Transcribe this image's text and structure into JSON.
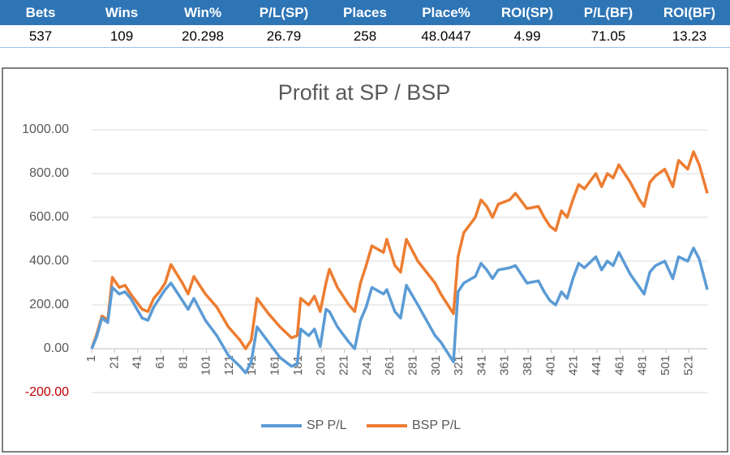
{
  "table": {
    "header": [
      "Bets",
      "Wins",
      "Win%",
      "P/L(SP)",
      "Places",
      "Place%",
      "ROI(SP)",
      "P/L(BF)",
      "ROI(BF)"
    ],
    "rows": [
      [
        537,
        109,
        20.298,
        26.79,
        258,
        48.0447,
        4.99,
        71.05,
        13.23
      ]
    ]
  },
  "chart_data": {
    "type": "line",
    "title": "Profit at SP / BSP",
    "x": [
      1,
      5,
      10,
      15,
      19,
      25,
      30,
      35,
      45,
      50,
      55,
      60,
      65,
      70,
      80,
      85,
      90,
      100,
      110,
      120,
      130,
      135,
      140,
      145,
      155,
      165,
      175,
      180,
      183,
      190,
      195,
      200,
      205,
      208,
      215,
      225,
      230,
      235,
      240,
      245,
      255,
      258,
      265,
      270,
      275,
      285,
      300,
      305,
      316,
      320,
      325,
      335,
      340,
      345,
      350,
      355,
      365,
      370,
      380,
      390,
      395,
      400,
      405,
      410,
      415,
      420,
      425,
      430,
      440,
      445,
      450,
      455,
      460,
      470,
      478,
      482,
      487,
      492,
      500,
      507,
      512,
      520,
      525,
      530,
      537
    ],
    "series": [
      {
        "name": "SP P/L",
        "color": "#5b9bd5",
        "values": [
          0,
          50,
          140,
          120,
          280,
          250,
          260,
          230,
          140,
          130,
          190,
          230,
          270,
          300,
          220,
          180,
          230,
          130,
          60,
          -30,
          -80,
          -110,
          -60,
          100,
          30,
          -40,
          -80,
          -70,
          90,
          60,
          90,
          10,
          180,
          170,
          100,
          30,
          0,
          130,
          190,
          280,
          250,
          270,
          170,
          140,
          290,
          200,
          60,
          30,
          -60,
          260,
          300,
          330,
          390,
          360,
          320,
          360,
          370,
          380,
          300,
          310,
          260,
          220,
          200,
          260,
          230,
          320,
          390,
          370,
          420,
          360,
          400,
          380,
          440,
          340,
          280,
          250,
          350,
          380,
          400,
          320,
          420,
          400,
          460,
          410,
          270
        ]
      },
      {
        "name": "BSP P/L",
        "color": "#ed7d31",
        "values": [
          0,
          60,
          150,
          130,
          326,
          280,
          290,
          250,
          180,
          170,
          230,
          260,
          300,
          385,
          300,
          250,
          330,
          250,
          190,
          100,
          40,
          0,
          40,
          230,
          160,
          100,
          50,
          60,
          230,
          200,
          240,
          170,
          300,
          363,
          280,
          200,
          170,
          300,
          380,
          470,
          440,
          500,
          380,
          350,
          500,
          400,
          300,
          250,
          160,
          420,
          530,
          600,
          680,
          650,
          600,
          660,
          680,
          710,
          640,
          650,
          600,
          560,
          540,
          630,
          600,
          680,
          750,
          730,
          800,
          740,
          800,
          780,
          840,
          760,
          680,
          650,
          760,
          790,
          820,
          740,
          860,
          820,
          900,
          840,
          710
        ]
      }
    ],
    "xlim": [
      1,
      537
    ],
    "xticks": [
      1,
      21,
      41,
      61,
      81,
      101,
      121,
      141,
      161,
      181,
      201,
      221,
      241,
      261,
      281,
      301,
      321,
      341,
      361,
      381,
      401,
      421,
      441,
      461,
      481,
      501,
      521
    ],
    "ylim": [
      -200,
      1000
    ],
    "yticks": [
      {
        "value": -200,
        "label": "-200.00"
      },
      {
        "value": 0,
        "label": "0.00"
      },
      {
        "value": 200,
        "label": "200.00"
      },
      {
        "value": 400,
        "label": "400.00"
      },
      {
        "value": 600,
        "label": "600.00"
      },
      {
        "value": 800,
        "label": "800.00"
      },
      {
        "value": 1000,
        "label": "1000.00"
      }
    ],
    "negative_tick_color": "#c00000",
    "grid": true,
    "legend": "bottom"
  }
}
